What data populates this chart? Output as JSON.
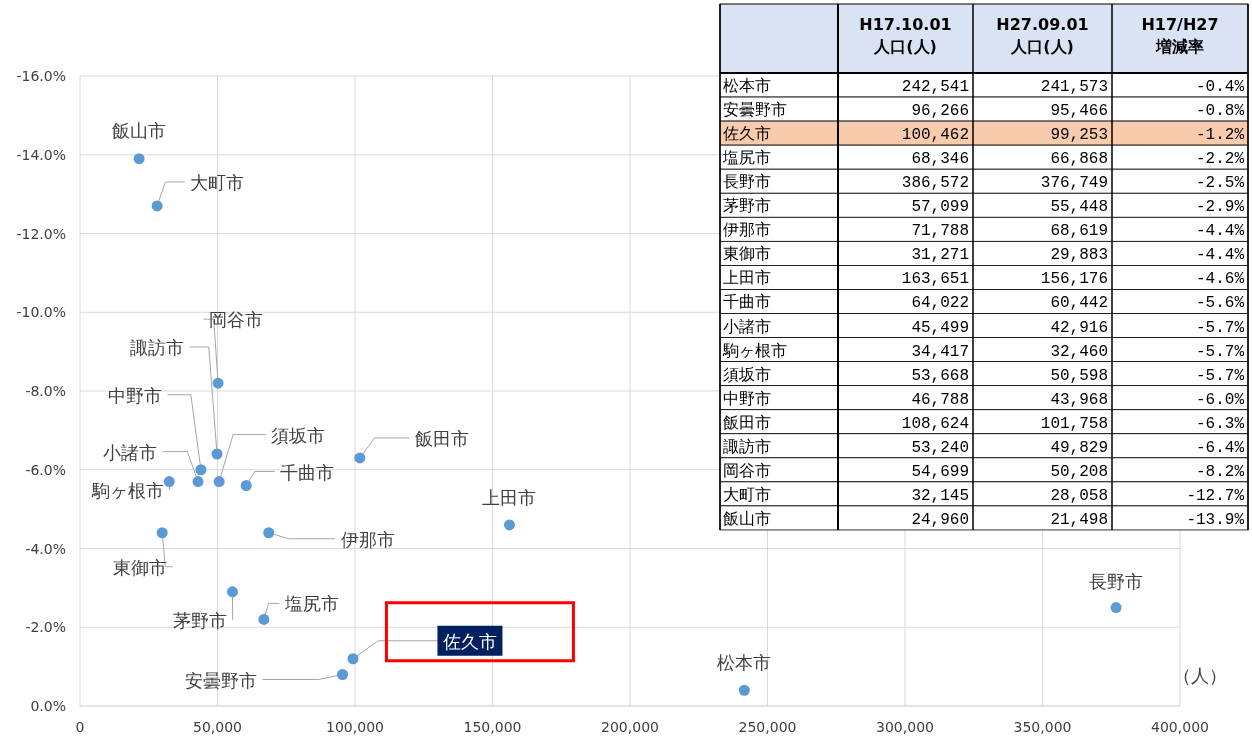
{
  "chart_data": [
    {
      "type": "scatter",
      "xlabel": "（人）",
      "series": [
        {
          "color": "#5b9bd5",
          "x": [
            241573,
            95466,
            99253,
            66868,
            376749,
            55448,
            68619,
            29883,
            156176,
            60442,
            42916,
            32460,
            50598,
            43968,
            101758,
            49829,
            50208,
            28058,
            21498
          ],
          "values": [
            -0.4,
            -0.8,
            -1.2,
            -2.2,
            -2.5,
            -2.9,
            -4.4,
            -4.4,
            -4.6,
            -5.6,
            -5.7,
            -5.7,
            -5.7,
            -6.0,
            -6.3,
            -6.4,
            -8.2,
            -12.7,
            -13.9
          ]
        }
      ],
      "annotations": [
        {
          "text": "松本市",
          "x": 241573,
          "y": -0.4
        },
        {
          "text": "安曇野市",
          "x": 95466,
          "y": -0.8
        },
        {
          "text": "佐久市",
          "x": 99253,
          "y": -1.2
        },
        {
          "text": "塩尻市",
          "x": 66868,
          "y": -2.2
        },
        {
          "text": "長野市",
          "x": 376749,
          "y": -2.5
        },
        {
          "text": "茅野市",
          "x": 55448,
          "y": -2.9
        },
        {
          "text": "伊那市",
          "x": 68619,
          "y": -4.4
        },
        {
          "text": "東御市",
          "x": 29883,
          "y": -4.4
        },
        {
          "text": "上田市",
          "x": 156176,
          "y": -4.6
        },
        {
          "text": "千曲市",
          "x": 60442,
          "y": -5.6
        },
        {
          "text": "小諸市",
          "x": 42916,
          "y": -5.7
        },
        {
          "text": "駒ヶ根市",
          "x": 32460,
          "y": -5.7
        },
        {
          "text": "須坂市",
          "x": 50598,
          "y": -5.7
        },
        {
          "text": "中野市",
          "x": 43968,
          "y": -6.0
        },
        {
          "text": "飯田市",
          "x": 101758,
          "y": -6.3
        },
        {
          "text": "諏訪市",
          "x": 49829,
          "y": -6.4
        },
        {
          "text": "岡谷市",
          "x": 50208,
          "y": -8.2
        },
        {
          "text": "大町市",
          "x": 28058,
          "y": -12.7
        },
        {
          "text": "飯山市",
          "x": 21498,
          "y": -13.9
        }
      ],
      "xlim": [
        0,
        400000
      ],
      "xticks": [
        0,
        {
          "value": 50000,
          "label": "50,000"
        },
        {
          "value": 100000,
          "label": "100,000"
        },
        {
          "value": 150000,
          "label": "150,000"
        },
        {
          "value": 200000,
          "label": "200,000"
        },
        {
          "value": 250000,
          "label": "250,000"
        },
        {
          "value": 300000,
          "label": "300,000"
        },
        {
          "value": 350000,
          "label": "350,000"
        },
        {
          "value": 400000,
          "label": "400,000"
        }
      ],
      "ylim": [
        0,
        -16
      ],
      "yticks": [
        {
          "value": 0,
          "label": "0.0%"
        },
        {
          "value": -2,
          "label": "-2.0%"
        },
        {
          "value": -4,
          "label": "-4.0%"
        },
        {
          "value": -6,
          "label": "-6.0%"
        },
        {
          "value": -8,
          "label": "-8.0%"
        },
        {
          "value": -10,
          "label": "-10.0%"
        },
        {
          "value": -12,
          "label": "-12.0%"
        },
        {
          "value": -14,
          "label": "-14.0%"
        },
        {
          "value": -16,
          "label": "-16.0%"
        }
      ],
      "grid": true,
      "marker": "circle"
    },
    {
      "type": "other",
      "categories": [
        "H17.10.01\n人口(人)",
        "H27.09.01\n人口(人)",
        "H17/H27\n増減率"
      ],
      "y_categories": [
        "松本市",
        "安曇野市",
        "佐久市",
        "塩尻市",
        "長野市",
        "茅野市",
        "伊那市",
        "東御市",
        "上田市",
        "千曲市",
        "小諸市",
        "駒ヶ根市",
        "須坂市",
        "中野市",
        "飯田市",
        "諏訪市",
        "岡谷市",
        "大町市",
        "飯山市"
      ],
      "cell_labels": [
        [
          "242,541",
          "241,573",
          "-0.4%"
        ],
        [
          "96,266",
          "95,466",
          "-0.8%"
        ],
        [
          "100,462",
          "99,253",
          "-1.2%"
        ],
        [
          "68,346",
          "66,868",
          "-2.2%"
        ],
        [
          "386,572",
          "376,749",
          "-2.5%"
        ],
        [
          "57,099",
          "55,448",
          "-2.9%"
        ],
        [
          "71,788",
          "68,619",
          "-4.4%"
        ],
        [
          "31,271",
          "29,883",
          "-4.4%"
        ],
        [
          "163,651",
          "156,176",
          "-4.6%"
        ],
        [
          "64,022",
          "60,442",
          "-5.6%"
        ],
        [
          "45,499",
          "42,916",
          "-5.7%"
        ],
        [
          "34,417",
          "32,460",
          "-5.7%"
        ],
        [
          "53,668",
          "50,598",
          "-5.7%"
        ],
        [
          "46,788",
          "43,968",
          "-6.0%"
        ],
        [
          "108,624",
          "101,758",
          "-6.3%"
        ],
        [
          "53,240",
          "49,829",
          "-6.4%"
        ],
        [
          "54,699",
          "50,208",
          "-8.2%"
        ],
        [
          "32,145",
          "28,058",
          "-12.7%"
        ],
        [
          "24,960",
          "21,498",
          "-13.9%"
        ]
      ],
      "colors": [
        "#dae3f3",
        "#ffffff",
        "#ffffff",
        "#f8cbad",
        "#ffffff",
        "#ffffff",
        "#ffffff",
        "#ffffff",
        "#ffffff",
        "#ffffff",
        "#ffffff",
        "#ffffff",
        "#ffffff",
        "#ffffff",
        "#ffffff",
        "#ffffff",
        "#ffffff",
        "#ffffff",
        "#ffffff",
        "#ffffff"
      ]
    }
  ]
}
